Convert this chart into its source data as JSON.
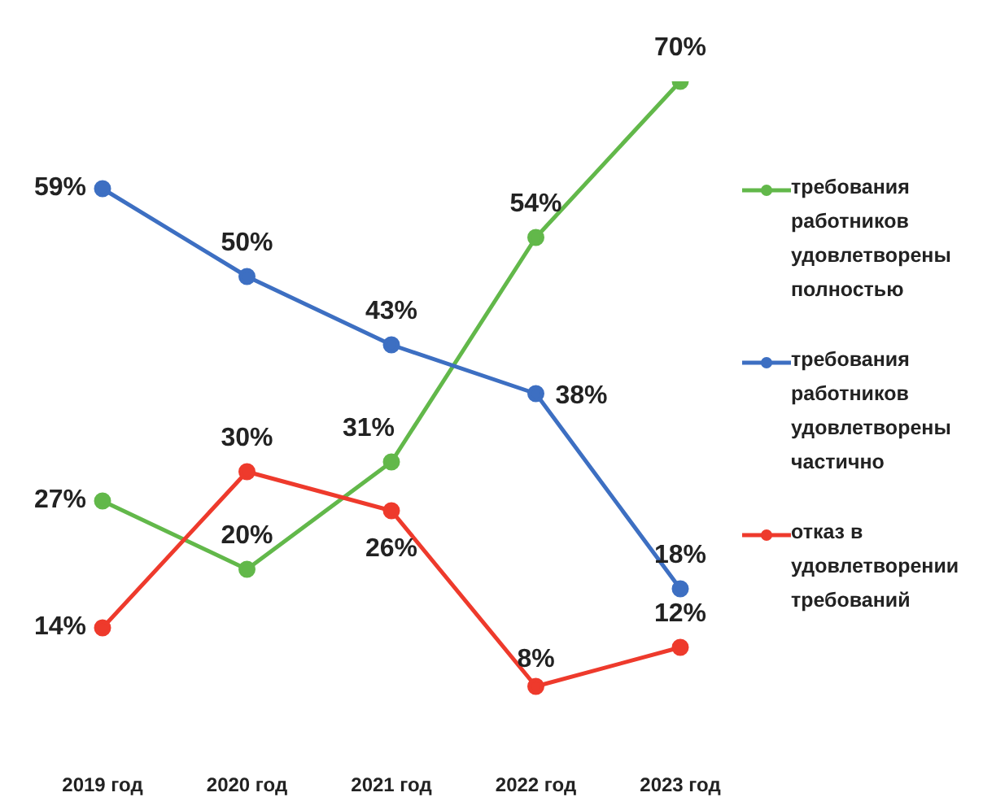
{
  "chart_data": {
    "type": "line",
    "categories": [
      "2019 год",
      "2020 год",
      "2021 год",
      "2022 год",
      "2023 год"
    ],
    "series": [
      {
        "name": "требования работников удовлетворены полностью",
        "color": "#62b84a",
        "values": [
          27,
          20,
          31,
          54,
          70
        ],
        "value_labels": [
          "27%",
          "20%",
          "31%",
          "54%",
          "70%"
        ]
      },
      {
        "name": "требования работников удовлетворены частично",
        "color": "#3d6fc2",
        "values": [
          59,
          50,
          43,
          38,
          18
        ],
        "value_labels": [
          "59%",
          "50%",
          "43%",
          "38%",
          "18%"
        ]
      },
      {
        "name": "отказ в удовлетворении требований",
        "color": "#ee3a2c",
        "values": [
          14,
          30,
          26,
          8,
          12
        ],
        "value_labels": [
          "14%",
          "30%",
          "26%",
          "8%",
          "12%"
        ]
      }
    ],
    "legend": "right",
    "marker": "circle",
    "grid": false
  }
}
